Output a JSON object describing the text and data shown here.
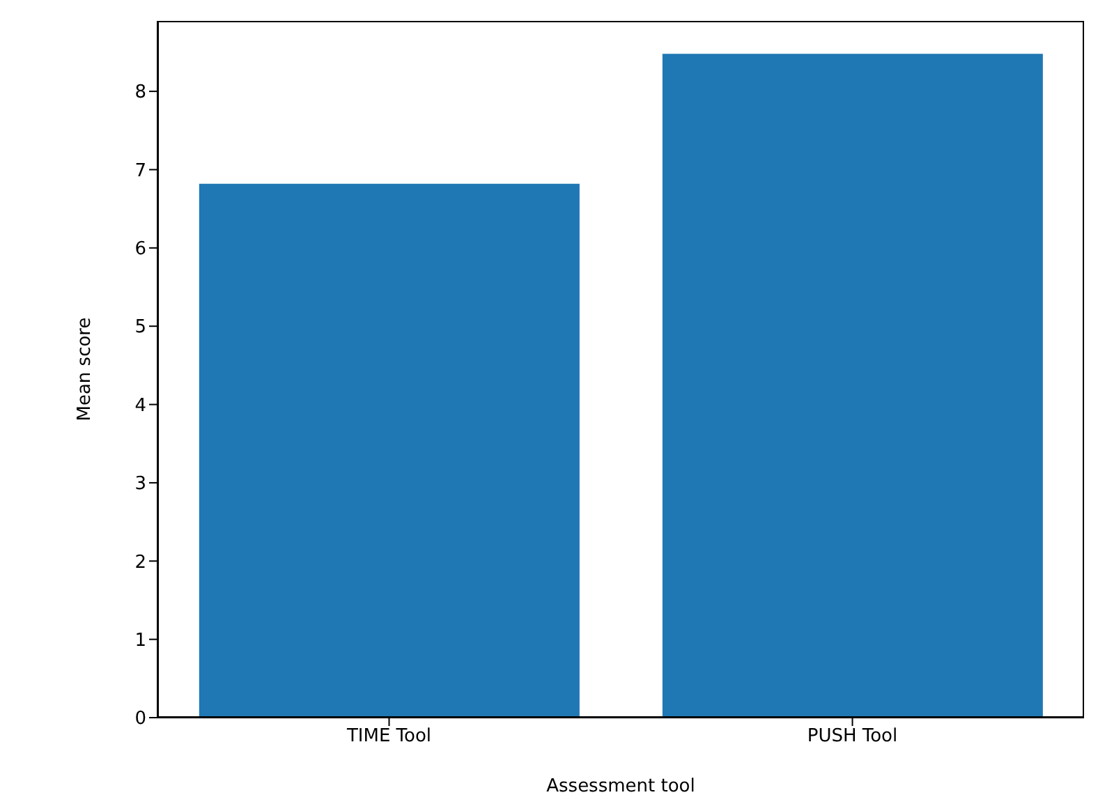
{
  "chart_data": {
    "type": "bar",
    "xlabel": "Assessment tool",
    "ylabel": "Mean score",
    "categories": [
      "TIME Tool",
      "PUSH Tool"
    ],
    "values": [
      6.82,
      8.48
    ],
    "color": "#1f77b4",
    "ylim": [
      0,
      8.9
    ],
    "yticks": [
      0,
      1,
      2,
      3,
      4,
      5,
      6,
      7,
      8
    ],
    "grid": false,
    "legend": false
  }
}
